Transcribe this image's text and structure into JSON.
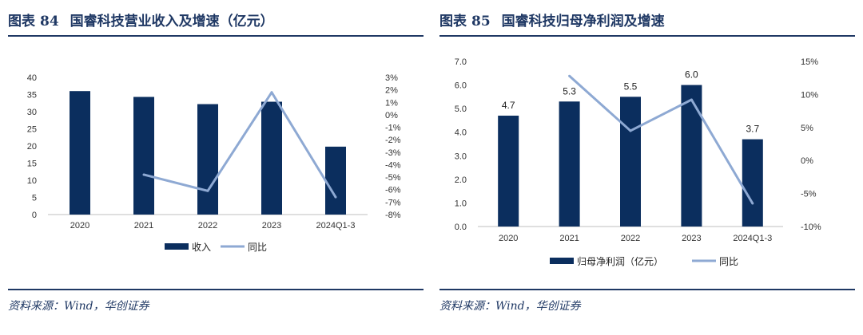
{
  "figures": [
    {
      "title_prefix": "图表",
      "title_number": "84",
      "title_text": "国睿科技营业收入及增速（亿元）",
      "source": "资料来源：Wind，华创证券"
    },
    {
      "title_prefix": "图表",
      "title_number": "85",
      "title_text": "国睿科技归母净利润及增速",
      "source": "资料来源：Wind，华创证券"
    }
  ],
  "colors": {
    "bar": "#0b2e5e",
    "line": "#8ea9d3",
    "rule": "#1f3864"
  },
  "chart_data": [
    {
      "type": "bar",
      "categories": [
        "2020",
        "2021",
        "2022",
        "2023",
        "2024Q1-3"
      ],
      "series": [
        {
          "name": "收入",
          "type": "bar",
          "axis": "left",
          "values": [
            36.0,
            34.3,
            32.2,
            32.9,
            19.8
          ]
        },
        {
          "name": "同比",
          "type": "line",
          "axis": "right",
          "values": [
            null,
            -4.8,
            -6.1,
            1.8,
            -6.6
          ]
        }
      ],
      "ylim": [
        0,
        40
      ],
      "yticks": [
        0,
        5,
        10,
        15,
        20,
        25,
        30,
        35,
        40
      ],
      "ylim_right": [
        -8,
        3
      ],
      "yticks_right": [
        -8,
        -7,
        -6,
        -5,
        -4,
        -3,
        -2,
        -1,
        0,
        1,
        2,
        3
      ],
      "yticklabels_right": [
        "-8%",
        "-7%",
        "-6%",
        "-5%",
        "-4%",
        "-3%",
        "-2%",
        "-1%",
        "0%",
        "1%",
        "2%",
        "3%"
      ],
      "xlabel": "",
      "ylabel": "",
      "grid": false,
      "legend": "bottom"
    },
    {
      "type": "bar",
      "categories": [
        "2020",
        "2021",
        "2022",
        "2023",
        "2024Q1-3"
      ],
      "series": [
        {
          "name": "归母净利润（亿元）",
          "type": "bar",
          "axis": "left",
          "values": [
            4.7,
            5.3,
            5.5,
            6.0,
            3.7
          ],
          "labels": [
            "4.7",
            "5.3",
            "5.5",
            "6.0",
            "3.7"
          ]
        },
        {
          "name": "同比",
          "type": "line",
          "axis": "right",
          "values": [
            null,
            12.8,
            4.5,
            9.2,
            -6.5
          ]
        }
      ],
      "ylim": [
        0,
        7
      ],
      "yticks": [
        0,
        1,
        2,
        3,
        4,
        5,
        6,
        7
      ],
      "yticklabels": [
        "0.0",
        "1.0",
        "2.0",
        "3.0",
        "4.0",
        "5.0",
        "6.0",
        "7.0"
      ],
      "ylim_right": [
        -10,
        15
      ],
      "yticks_right": [
        -10,
        -5,
        0,
        5,
        10,
        15
      ],
      "yticklabels_right": [
        "-10%",
        "-5%",
        "0%",
        "5%",
        "10%",
        "15%"
      ],
      "xlabel": "",
      "ylabel": "",
      "grid": false,
      "legend": "bottom"
    }
  ]
}
